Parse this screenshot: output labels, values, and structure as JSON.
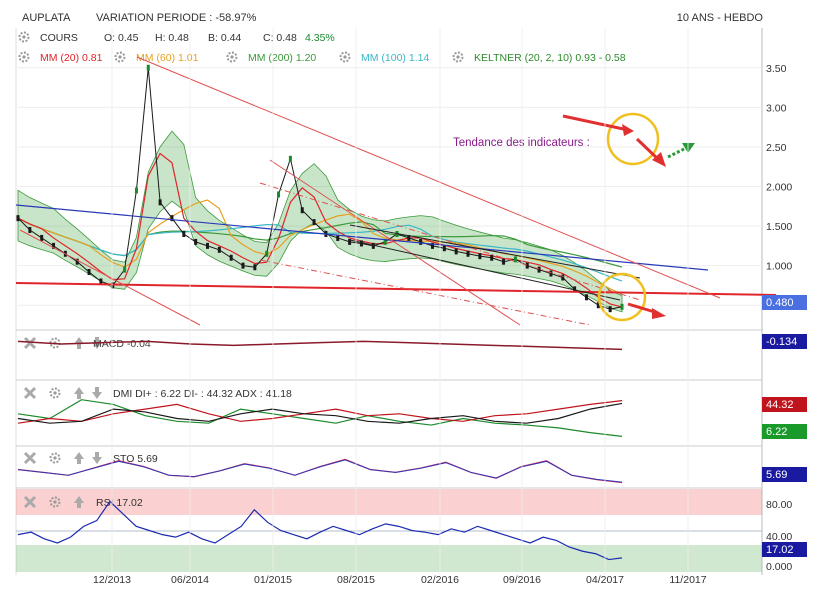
{
  "header": {
    "symbol": "AUPLATA",
    "variation": "VARIATION PERIODE : -58.97%",
    "period": "10 ANS - HEBDO"
  },
  "quote": {
    "label": "COURS",
    "open": "O: 0.45",
    "high": "H: 0.48",
    "low": "B: 0.44",
    "close": "C: 0.48",
    "change": "4.35%"
  },
  "overlays": [
    {
      "name": "MM (20)",
      "value": "0.81",
      "color": "#e0252a"
    },
    {
      "name": "MM (60)",
      "value": "1.01",
      "color": "#e8a020"
    },
    {
      "name": "MM (200)",
      "value": "1.20",
      "color": "#3a9a3a"
    },
    {
      "name": "MM (100)",
      "value": "1.14",
      "color": "#38b8c8"
    },
    {
      "name": "KELTNER (20, 2, 10)",
      "value": "0.93 - 0.58",
      "color": "#2e8b2e"
    }
  ],
  "annotation": {
    "text": "Tendance des indicateurs :"
  },
  "indicators": {
    "macd": {
      "label": "MACD",
      "value": "-0.04",
      "badge": "-0.134"
    },
    "dmi": {
      "label": "DMI",
      "text": "DI+ : 6.22 DI- : 44.32 ADX : 41.18",
      "badge_top": "44.32",
      "badge_bottom": "6.22"
    },
    "sto": {
      "label": "STO",
      "value": "5.69",
      "badge": "5.69"
    },
    "rsi": {
      "label": "RSI",
      "value": "17.02",
      "badge": "17.02",
      "ticks": [
        "80.00",
        "40.00",
        "0.000"
      ]
    }
  },
  "price_badge": "0.480",
  "icon_names": [
    "gear-icon",
    "close-icon",
    "up-arrow-icon",
    "down-arrow-icon"
  ],
  "colors": {
    "price_badge": "#4a6fe0",
    "red_badge": "#c0141c",
    "green_badge": "#1a9a2a",
    "blue_badge": "#1a1aa0"
  },
  "chart_data": {
    "type": "line",
    "yticks": [
      "3.50",
      "3.00",
      "2.50",
      "2.000",
      "1.500",
      "1.000",
      "0.500"
    ],
    "ylim": [
      0.25,
      3.75
    ],
    "xticks": [
      "12/2013",
      "06/2014",
      "01/2015",
      "08/2015",
      "02/2016",
      "09/2016",
      "04/2017",
      "11/2017"
    ],
    "price": [
      1.6,
      1.45,
      1.35,
      1.25,
      1.15,
      1.05,
      0.92,
      0.8,
      0.75,
      0.95,
      1.95,
      3.5,
      1.8,
      1.6,
      1.4,
      1.3,
      1.25,
      1.2,
      1.1,
      1.0,
      0.98,
      1.15,
      1.9,
      2.35,
      1.7,
      1.55,
      1.4,
      1.35,
      1.3,
      1.28,
      1.25,
      1.3,
      1.4,
      1.35,
      1.3,
      1.25,
      1.22,
      1.18,
      1.15,
      1.12,
      1.1,
      1.05,
      1.08,
      1.0,
      0.95,
      0.9,
      0.85,
      0.7,
      0.6,
      0.5,
      0.45,
      0.48
    ],
    "rsi": [
      45,
      48,
      40,
      35,
      42,
      55,
      62,
      85,
      70,
      55,
      50,
      45,
      42,
      48,
      40,
      35,
      45,
      55,
      75,
      60,
      50,
      45,
      40,
      48,
      55,
      50,
      45,
      52,
      58,
      55,
      50,
      48,
      45,
      52,
      48,
      55,
      50,
      45,
      40,
      35,
      42,
      38,
      30,
      25,
      22,
      15,
      17
    ],
    "macd": [
      0.02,
      0.0,
      0.01,
      0.02,
      0.0,
      -0.01,
      0.0,
      0.01,
      0.02,
      0.01,
      0.0,
      -0.01,
      -0.02,
      -0.03,
      -0.04
    ],
    "dmi_plus": [
      30,
      25,
      45,
      40,
      28,
      22,
      20,
      35,
      30,
      25,
      20,
      28,
      22,
      18,
      25,
      20,
      18,
      15,
      10,
      6
    ],
    "dmi_minus": [
      20,
      25,
      22,
      30,
      35,
      40,
      30,
      22,
      25,
      30,
      35,
      28,
      30,
      25,
      22,
      28,
      30,
      35,
      40,
      44
    ],
    "adx": [
      25,
      20,
      22,
      35,
      32,
      25,
      22,
      30,
      35,
      30,
      28,
      22,
      20,
      25,
      28,
      22,
      20,
      25,
      35,
      41
    ],
    "sto": [
      50,
      40,
      30,
      55,
      80,
      60,
      30,
      25,
      45,
      70,
      55,
      30,
      60,
      85,
      50,
      40,
      55,
      75,
      40,
      20,
      60,
      80,
      30,
      15,
      5
    ]
  }
}
